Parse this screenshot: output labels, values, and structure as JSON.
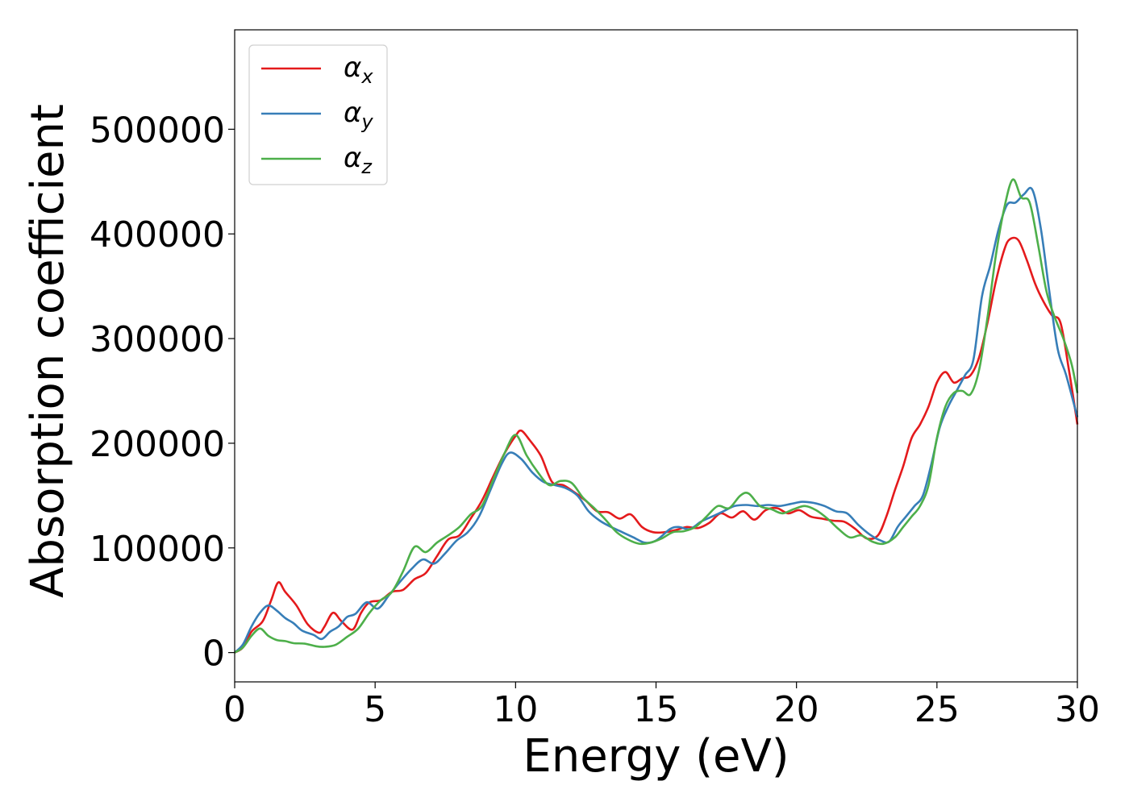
{
  "chart_data": {
    "type": "line",
    "title": "",
    "xlabel": "Energy (eV)",
    "ylabel": "Absorption coefficient",
    "xlim": [
      0,
      30
    ],
    "ylim": [
      -28000,
      595000
    ],
    "xticks": [
      0,
      5,
      10,
      15,
      20,
      25,
      30
    ],
    "xtick_labels": [
      "0",
      "5",
      "10",
      "15",
      "20",
      "25",
      "30"
    ],
    "yticks": [
      0,
      100000,
      200000,
      300000,
      400000,
      500000
    ],
    "ytick_labels": [
      "0",
      "100000",
      "200000",
      "300000",
      "400000",
      "500000"
    ],
    "grid": false,
    "legend_position": "top-left",
    "series": [
      {
        "name": "α",
        "subscript": "x",
        "color": "#e41a1c",
        "points": [
          [
            0,
            0
          ],
          [
            0.3,
            5000
          ],
          [
            0.6,
            20000
          ],
          [
            1,
            30000
          ],
          [
            1.3,
            50000
          ],
          [
            1.55,
            67000
          ],
          [
            1.8,
            58000
          ],
          [
            2.2,
            45000
          ],
          [
            2.6,
            27000
          ],
          [
            3.0,
            19000
          ],
          [
            3.2,
            25000
          ],
          [
            3.5,
            38000
          ],
          [
            3.8,
            30000
          ],
          [
            4.2,
            22000
          ],
          [
            4.5,
            38000
          ],
          [
            4.8,
            48000
          ],
          [
            5.2,
            50000
          ],
          [
            5.6,
            58000
          ],
          [
            6.0,
            60000
          ],
          [
            6.4,
            70000
          ],
          [
            6.8,
            76000
          ],
          [
            7.2,
            92000
          ],
          [
            7.6,
            108000
          ],
          [
            8.0,
            112000
          ],
          [
            8.4,
            128000
          ],
          [
            8.8,
            145000
          ],
          [
            9.2,
            168000
          ],
          [
            9.6,
            190000
          ],
          [
            10.0,
            207000
          ],
          [
            10.2,
            212000
          ],
          [
            10.5,
            203000
          ],
          [
            10.9,
            188000
          ],
          [
            11.3,
            163000
          ],
          [
            11.7,
            160000
          ],
          [
            12.1,
            153000
          ],
          [
            12.5,
            145000
          ],
          [
            12.9,
            135000
          ],
          [
            13.3,
            134000
          ],
          [
            13.7,
            128000
          ],
          [
            14.1,
            132000
          ],
          [
            14.5,
            120000
          ],
          [
            14.9,
            115000
          ],
          [
            15.3,
            115000
          ],
          [
            15.7,
            117000
          ],
          [
            16.1,
            120000
          ],
          [
            16.5,
            119000
          ],
          [
            16.9,
            124000
          ],
          [
            17.3,
            133000
          ],
          [
            17.7,
            129000
          ],
          [
            18.1,
            135000
          ],
          [
            18.5,
            127000
          ],
          [
            18.9,
            136000
          ],
          [
            19.3,
            138000
          ],
          [
            19.7,
            133000
          ],
          [
            20.1,
            136000
          ],
          [
            20.5,
            130000
          ],
          [
            20.9,
            128000
          ],
          [
            21.3,
            126000
          ],
          [
            21.7,
            125000
          ],
          [
            22.1,
            118000
          ],
          [
            22.5,
            109000
          ],
          [
            22.9,
            112000
          ],
          [
            23.2,
            130000
          ],
          [
            23.5,
            155000
          ],
          [
            23.8,
            178000
          ],
          [
            24.1,
            205000
          ],
          [
            24.4,
            218000
          ],
          [
            24.7,
            235000
          ],
          [
            25.0,
            258000
          ],
          [
            25.3,
            268000
          ],
          [
            25.6,
            258000
          ],
          [
            25.9,
            262000
          ],
          [
            26.2,
            265000
          ],
          [
            26.5,
            282000
          ],
          [
            26.8,
            315000
          ],
          [
            27.1,
            355000
          ],
          [
            27.4,
            385000
          ],
          [
            27.6,
            395000
          ],
          [
            27.9,
            394000
          ],
          [
            28.2,
            375000
          ],
          [
            28.5,
            352000
          ],
          [
            28.8,
            335000
          ],
          [
            29.1,
            322000
          ],
          [
            29.4,
            315000
          ],
          [
            29.7,
            270000
          ],
          [
            30,
            218000
          ]
        ]
      },
      {
        "name": "α",
        "subscript": "y",
        "color": "#377eb8",
        "points": [
          [
            0,
            0
          ],
          [
            0.3,
            8000
          ],
          [
            0.6,
            25000
          ],
          [
            0.9,
            38000
          ],
          [
            1.2,
            45000
          ],
          [
            1.5,
            40000
          ],
          [
            1.8,
            33000
          ],
          [
            2.1,
            28000
          ],
          [
            2.4,
            21000
          ],
          [
            2.8,
            17000
          ],
          [
            3.1,
            13000
          ],
          [
            3.4,
            20000
          ],
          [
            3.7,
            25000
          ],
          [
            4.0,
            34000
          ],
          [
            4.3,
            37000
          ],
          [
            4.7,
            48000
          ],
          [
            5.1,
            42000
          ],
          [
            5.5,
            55000
          ],
          [
            5.9,
            68000
          ],
          [
            6.3,
            80000
          ],
          [
            6.7,
            89000
          ],
          [
            7.1,
            85000
          ],
          [
            7.5,
            95000
          ],
          [
            7.9,
            107000
          ],
          [
            8.3,
            115000
          ],
          [
            8.7,
            130000
          ],
          [
            9.1,
            155000
          ],
          [
            9.5,
            180000
          ],
          [
            9.8,
            191000
          ],
          [
            10.2,
            185000
          ],
          [
            10.6,
            172000
          ],
          [
            11.0,
            163000
          ],
          [
            11.4,
            160000
          ],
          [
            11.8,
            157000
          ],
          [
            12.2,
            150000
          ],
          [
            12.6,
            135000
          ],
          [
            13.0,
            126000
          ],
          [
            13.4,
            120000
          ],
          [
            13.8,
            115000
          ],
          [
            14.2,
            110000
          ],
          [
            14.6,
            105000
          ],
          [
            15.0,
            107000
          ],
          [
            15.5,
            118000
          ],
          [
            15.8,
            120000
          ],
          [
            16.2,
            118000
          ],
          [
            16.6,
            125000
          ],
          [
            17.0,
            130000
          ],
          [
            17.4,
            135000
          ],
          [
            17.8,
            140000
          ],
          [
            18.2,
            141000
          ],
          [
            18.6,
            140000
          ],
          [
            19.0,
            141000
          ],
          [
            19.4,
            140000
          ],
          [
            19.8,
            142000
          ],
          [
            20.2,
            144000
          ],
          [
            20.6,
            143000
          ],
          [
            21.0,
            140000
          ],
          [
            21.4,
            135000
          ],
          [
            21.8,
            133000
          ],
          [
            22.2,
            122000
          ],
          [
            22.6,
            113000
          ],
          [
            23.0,
            107000
          ],
          [
            23.3,
            106000
          ],
          [
            23.6,
            120000
          ],
          [
            23.9,
            130000
          ],
          [
            24.2,
            140000
          ],
          [
            24.5,
            150000
          ],
          [
            24.8,
            180000
          ],
          [
            25.1,
            215000
          ],
          [
            25.4,
            235000
          ],
          [
            25.7,
            250000
          ],
          [
            26.0,
            265000
          ],
          [
            26.3,
            280000
          ],
          [
            26.6,
            340000
          ],
          [
            26.9,
            370000
          ],
          [
            27.2,
            405000
          ],
          [
            27.5,
            428000
          ],
          [
            27.8,
            430000
          ],
          [
            28.1,
            438000
          ],
          [
            28.4,
            442000
          ],
          [
            28.7,
            405000
          ],
          [
            29.0,
            345000
          ],
          [
            29.3,
            290000
          ],
          [
            29.6,
            265000
          ],
          [
            30,
            225000
          ]
        ]
      },
      {
        "name": "α",
        "subscript": "z",
        "color": "#4daf4a",
        "points": [
          [
            0,
            0
          ],
          [
            0.3,
            5000
          ],
          [
            0.6,
            16000
          ],
          [
            0.9,
            23000
          ],
          [
            1.2,
            16000
          ],
          [
            1.5,
            12000
          ],
          [
            1.8,
            11000
          ],
          [
            2.1,
            9000
          ],
          [
            2.5,
            8500
          ],
          [
            2.9,
            6000
          ],
          [
            3.2,
            5500
          ],
          [
            3.6,
            7500
          ],
          [
            4.0,
            15000
          ],
          [
            4.4,
            23000
          ],
          [
            4.8,
            38000
          ],
          [
            5.2,
            50000
          ],
          [
            5.6,
            58000
          ],
          [
            6.0,
            78000
          ],
          [
            6.4,
            101000
          ],
          [
            6.8,
            96000
          ],
          [
            7.2,
            105000
          ],
          [
            7.6,
            112000
          ],
          [
            8.0,
            120000
          ],
          [
            8.4,
            132000
          ],
          [
            8.8,
            140000
          ],
          [
            9.2,
            165000
          ],
          [
            9.6,
            190000
          ],
          [
            10.0,
            208000
          ],
          [
            10.4,
            188000
          ],
          [
            10.8,
            172000
          ],
          [
            11.2,
            160000
          ],
          [
            11.6,
            164000
          ],
          [
            12.0,
            162000
          ],
          [
            12.4,
            148000
          ],
          [
            12.8,
            138000
          ],
          [
            13.2,
            127000
          ],
          [
            13.6,
            115000
          ],
          [
            14.0,
            108000
          ],
          [
            14.4,
            104000
          ],
          [
            14.8,
            105000
          ],
          [
            15.2,
            109000
          ],
          [
            15.6,
            115000
          ],
          [
            16.0,
            116000
          ],
          [
            16.4,
            120000
          ],
          [
            16.8,
            130000
          ],
          [
            17.2,
            140000
          ],
          [
            17.6,
            138000
          ],
          [
            18.0,
            150000
          ],
          [
            18.3,
            152000
          ],
          [
            18.7,
            140000
          ],
          [
            19.1,
            137000
          ],
          [
            19.5,
            133000
          ],
          [
            19.9,
            137000
          ],
          [
            20.3,
            140000
          ],
          [
            20.7,
            136000
          ],
          [
            21.1,
            128000
          ],
          [
            21.5,
            118000
          ],
          [
            21.9,
            110000
          ],
          [
            22.3,
            112000
          ],
          [
            22.7,
            106000
          ],
          [
            23.1,
            104000
          ],
          [
            23.5,
            110000
          ],
          [
            23.8,
            120000
          ],
          [
            24.1,
            130000
          ],
          [
            24.4,
            140000
          ],
          [
            24.7,
            160000
          ],
          [
            25.0,
            205000
          ],
          [
            25.3,
            235000
          ],
          [
            25.6,
            248000
          ],
          [
            25.9,
            250000
          ],
          [
            26.2,
            247000
          ],
          [
            26.5,
            270000
          ],
          [
            26.8,
            320000
          ],
          [
            27.1,
            380000
          ],
          [
            27.4,
            425000
          ],
          [
            27.7,
            452000
          ],
          [
            28.0,
            435000
          ],
          [
            28.3,
            430000
          ],
          [
            28.6,
            390000
          ],
          [
            28.9,
            345000
          ],
          [
            29.2,
            320000
          ],
          [
            29.5,
            300000
          ],
          [
            29.8,
            275000
          ],
          [
            30,
            248000
          ]
        ]
      }
    ]
  }
}
